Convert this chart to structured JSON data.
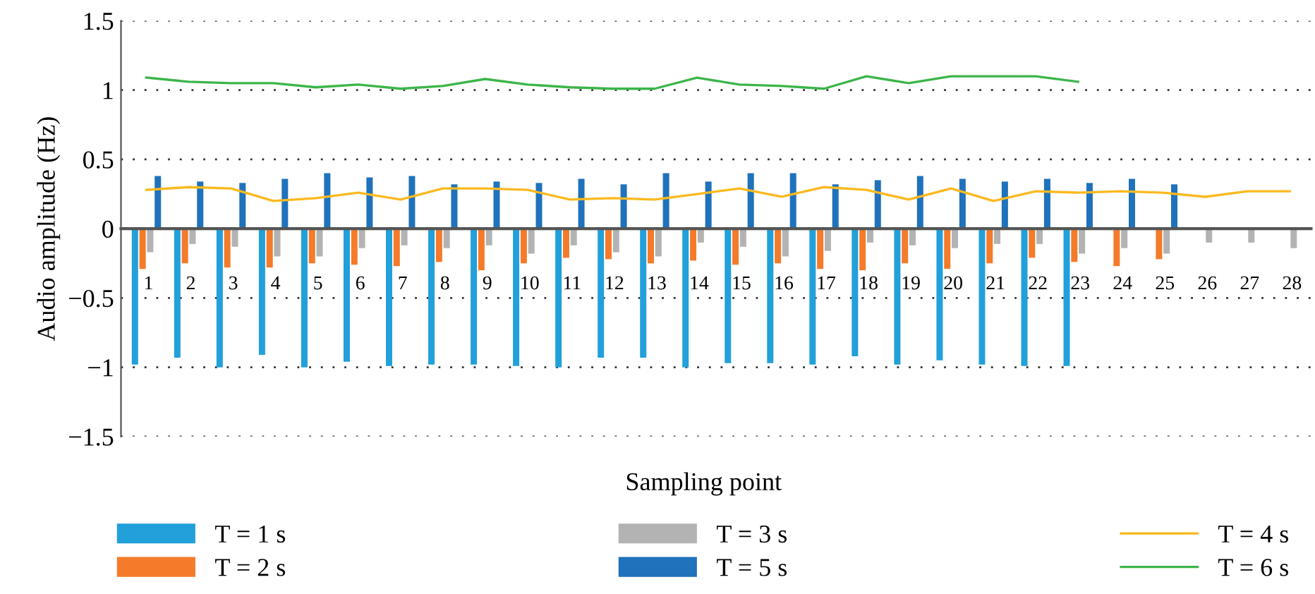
{
  "chart_data": {
    "type": "bar",
    "xlabel": "Sampling point",
    "ylabel": "Audio amplitude (Hz)",
    "categories": [
      "1",
      "2",
      "3",
      "4",
      "5",
      "6",
      "7",
      "8",
      "9",
      "10",
      "11",
      "12",
      "13",
      "14",
      "15",
      "16",
      "17",
      "18",
      "19",
      "20",
      "21",
      "22",
      "23",
      "24",
      "25",
      "26",
      "27",
      "28"
    ],
    "series": [
      {
        "name": "T = 1 s",
        "color": "#22a0da",
        "values": [
          -0.98,
          -0.93,
          -1.0,
          -0.91,
          -1.0,
          -0.96,
          -0.99,
          -0.98,
          -0.98,
          -0.99,
          -1.0,
          -0.93,
          -0.93,
          -1.0,
          -0.97,
          -0.97,
          -0.98,
          -0.92,
          -0.98,
          -0.95,
          -0.98,
          -0.99,
          -0.99,
          null,
          null,
          null,
          null,
          null
        ]
      },
      {
        "name": "T = 2 s",
        "color": "#f47b2a",
        "values": [
          -0.29,
          -0.25,
          -0.28,
          -0.28,
          -0.25,
          -0.26,
          -0.27,
          -0.24,
          -0.3,
          -0.25,
          -0.21,
          -0.22,
          -0.25,
          -0.23,
          -0.26,
          -0.25,
          -0.29,
          -0.3,
          -0.25,
          -0.29,
          -0.25,
          -0.21,
          -0.24,
          -0.27,
          -0.22,
          null,
          null,
          null
        ]
      },
      {
        "name": "T = 3 s",
        "color": "#b3b3b3",
        "values": [
          -0.17,
          -0.11,
          -0.13,
          -0.2,
          -0.2,
          -0.14,
          -0.12,
          -0.14,
          -0.12,
          -0.18,
          -0.12,
          -0.17,
          -0.2,
          -0.1,
          -0.13,
          -0.2,
          -0.16,
          -0.1,
          -0.12,
          -0.14,
          -0.11,
          -0.11,
          -0.18,
          -0.14,
          -0.18,
          -0.1,
          -0.1,
          -0.14
        ]
      },
      {
        "name": "T = 5 s",
        "color": "#1f72bb",
        "values": [
          0.38,
          0.34,
          0.33,
          0.36,
          0.4,
          0.37,
          0.38,
          0.32,
          0.34,
          0.33,
          0.36,
          0.32,
          0.4,
          0.34,
          0.4,
          0.4,
          0.32,
          0.35,
          0.38,
          0.36,
          0.34,
          0.36,
          0.33,
          0.36,
          0.32,
          null,
          null,
          null
        ]
      },
      {
        "name": "T = 4 s",
        "type": "line",
        "color": "#fbb91f",
        "values": [
          0.28,
          0.3,
          0.29,
          0.2,
          0.22,
          0.26,
          0.21,
          0.29,
          0.29,
          0.28,
          0.21,
          0.22,
          0.21,
          0.25,
          0.29,
          0.23,
          0.3,
          0.28,
          0.21,
          0.29,
          0.2,
          0.27,
          0.26,
          0.27,
          0.26,
          0.23,
          0.27,
          0.27
        ]
      },
      {
        "name": "T = 6 s",
        "type": "line",
        "color": "#3cb54a",
        "values": [
          1.09,
          1.06,
          1.05,
          1.05,
          1.02,
          1.04,
          1.01,
          1.03,
          1.08,
          1.04,
          1.02,
          1.01,
          1.01,
          1.09,
          1.04,
          1.03,
          1.01,
          1.1,
          1.05,
          1.1,
          1.1,
          1.1,
          1.06,
          null,
          null,
          null,
          null,
          null
        ]
      }
    ],
    "ylim": [
      -1.5,
      1.5
    ],
    "yticks": [
      {
        "value": -1.5,
        "label": "−1.5"
      },
      {
        "value": -1,
        "label": "−1"
      },
      {
        "value": -0.5,
        "label": "−0.5"
      },
      0,
      0.5,
      1,
      1.5
    ],
    "grid": "y",
    "legend": "bottom",
    "marker": "none",
    "line_style": "solid"
  }
}
